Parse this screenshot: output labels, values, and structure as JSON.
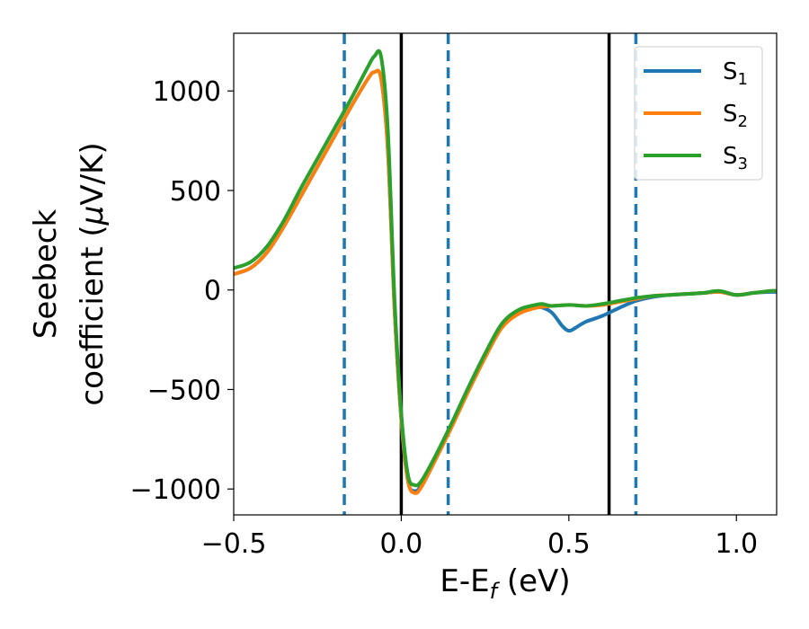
{
  "chart_data": {
    "type": "line",
    "xlabel_main": "E-E",
    "xlabel_sub": "f",
    "xlabel_unit": " (eV)",
    "ylabel_line1": "Seebeck",
    "ylabel_line2_text": "coefficient  (",
    "ylabel_mu": "μ",
    "ylabel_line2_unit": "V/K)",
    "xlim": [
      -0.5,
      1.12
    ],
    "ylim": [
      -1130,
      1290
    ],
    "x_ticks": [
      -0.5,
      0.0,
      0.5,
      1.0
    ],
    "x_tick_labels": [
      "−0.5",
      "0.0",
      "0.5",
      "1.0"
    ],
    "y_ticks": [
      -1000,
      -500,
      0,
      500,
      1000
    ],
    "y_tick_labels": [
      "−1000",
      "−500",
      "0",
      "500",
      "1000"
    ],
    "grid": false,
    "legend_position": "top-right",
    "solid_vlines": [
      0.0,
      0.62
    ],
    "dashed_vlines": [
      -0.17,
      0.14,
      0.7
    ],
    "colors": {
      "S1": "#1f77b4",
      "S2": "#ff7f0e",
      "S3": "#2ca02c",
      "vline_solid": "#000000",
      "vline_dashed": "#1f77b4"
    },
    "series": [
      {
        "name_base": "S",
        "name_sub": "1",
        "color": "#1f77b4",
        "x": [
          -0.5,
          -0.45,
          -0.4,
          -0.35,
          -0.3,
          -0.25,
          -0.2,
          -0.15,
          -0.1,
          -0.08,
          -0.06,
          -0.04,
          -0.02,
          0.0,
          0.02,
          0.04,
          0.06,
          0.1,
          0.15,
          0.2,
          0.25,
          0.3,
          0.35,
          0.4,
          0.42,
          0.45,
          0.48,
          0.5,
          0.52,
          0.55,
          0.6,
          0.65,
          0.7,
          0.75,
          0.8,
          0.85,
          0.9,
          0.95,
          1.0,
          1.05,
          1.1,
          1.12
        ],
        "y": [
          80,
          110,
          190,
          320,
          470,
          620,
          770,
          920,
          1060,
          1095,
          1060,
          700,
          -100,
          -650,
          -960,
          -1010,
          -980,
          -850,
          -680,
          -500,
          -330,
          -180,
          -110,
          -90,
          -88,
          -115,
          -180,
          -205,
          -190,
          -160,
          -130,
          -90,
          -55,
          -35,
          -25,
          -20,
          -15,
          -10,
          -25,
          -15,
          -10,
          -10
        ]
      },
      {
        "name_base": "S",
        "name_sub": "2",
        "color": "#ff7f0e",
        "x": [
          -0.5,
          -0.45,
          -0.4,
          -0.35,
          -0.3,
          -0.25,
          -0.2,
          -0.15,
          -0.1,
          -0.08,
          -0.06,
          -0.04,
          -0.02,
          0.0,
          0.02,
          0.04,
          0.06,
          0.1,
          0.15,
          0.2,
          0.25,
          0.3,
          0.35,
          0.4,
          0.42,
          0.45,
          0.5,
          0.55,
          0.6,
          0.65,
          0.7,
          0.75,
          0.8,
          0.85,
          0.9,
          0.95,
          1.0,
          1.05,
          1.1,
          1.12
        ],
        "y": [
          80,
          110,
          190,
          320,
          470,
          620,
          770,
          920,
          1060,
          1095,
          1060,
          700,
          -100,
          -650,
          -960,
          -1020,
          -990,
          -860,
          -690,
          -510,
          -340,
          -190,
          -120,
          -90,
          -85,
          -80,
          -75,
          -80,
          -75,
          -60,
          -45,
          -30,
          -25,
          -20,
          -15,
          -10,
          -25,
          -15,
          -5,
          -5
        ]
      },
      {
        "name_base": "S",
        "name_sub": "3",
        "color": "#2ca02c",
        "x": [
          -0.5,
          -0.45,
          -0.4,
          -0.35,
          -0.3,
          -0.25,
          -0.2,
          -0.15,
          -0.1,
          -0.08,
          -0.06,
          -0.04,
          -0.02,
          0.0,
          0.02,
          0.04,
          0.06,
          0.1,
          0.15,
          0.2,
          0.25,
          0.3,
          0.35,
          0.4,
          0.42,
          0.45,
          0.5,
          0.55,
          0.6,
          0.65,
          0.7,
          0.75,
          0.8,
          0.85,
          0.9,
          0.95,
          1.0,
          1.05,
          1.1,
          1.12
        ],
        "y": [
          110,
          140,
          220,
          350,
          510,
          660,
          810,
          960,
          1120,
          1175,
          1170,
          800,
          -50,
          -620,
          -930,
          -980,
          -960,
          -840,
          -670,
          -490,
          -320,
          -170,
          -100,
          -75,
          -70,
          -80,
          -75,
          -80,
          -70,
          -55,
          -40,
          -30,
          -25,
          -20,
          -15,
          -5,
          -25,
          -15,
          -5,
          -5
        ]
      }
    ]
  }
}
